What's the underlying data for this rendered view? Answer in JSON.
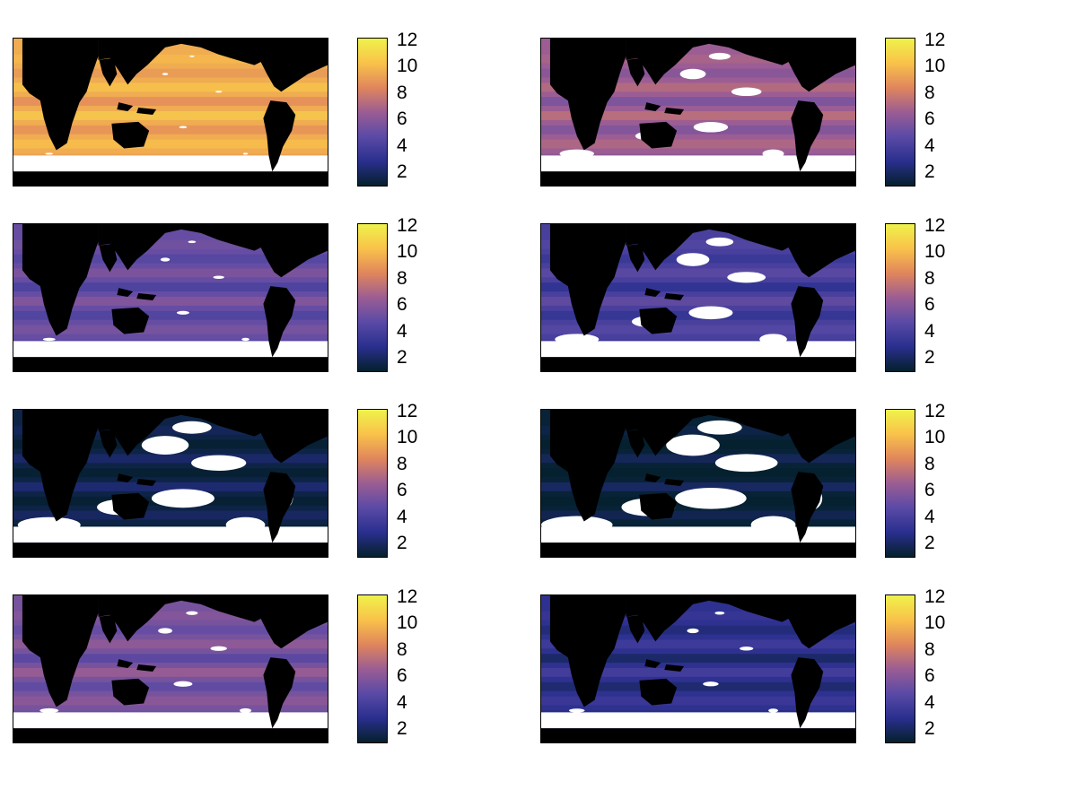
{
  "figure": {
    "panel_count": 8,
    "grid": "4 rows x 2 columns of global ocean maps, each with its own vertical colorbar",
    "background": "#ffffff",
    "land_color": "#000000",
    "no_data_color": "#ffffff"
  },
  "colorbar": {
    "colormap": "thermal",
    "range": [
      1,
      12
    ],
    "tick_labels": [
      "12",
      "10",
      "8",
      "6",
      "4",
      "2"
    ],
    "tick_values": [
      12,
      10,
      8,
      6,
      4,
      2
    ],
    "stops": [
      "#04202c",
      "#2a2f8e",
      "#5a4aa6",
      "#9b5d93",
      "#e0865c",
      "#f9c24a",
      "#eff24b"
    ]
  },
  "panels": [
    {
      "id": "p1",
      "level": 9.5,
      "coverage": 0.95,
      "tint": "#f39b50"
    },
    {
      "id": "p2",
      "level": 6.5,
      "coverage": 0.78,
      "tint": "#c9706e"
    },
    {
      "id": "p3",
      "level": 5.0,
      "coverage": 0.92,
      "tint": "#6f4f9e"
    },
    {
      "id": "p4",
      "level": 4.0,
      "coverage": 0.72,
      "tint": "#4a3f98"
    },
    {
      "id": "p5",
      "level": 1.5,
      "coverage": 0.6,
      "tint": "#0d2f44"
    },
    {
      "id": "p6",
      "level": 1.2,
      "coverage": 0.35,
      "tint": "#062733"
    },
    {
      "id": "p7",
      "level": 5.5,
      "coverage": 0.88,
      "tint": "#7f549a"
    },
    {
      "id": "p8",
      "level": 3.0,
      "coverage": 0.9,
      "tint": "#3b33a0"
    }
  ]
}
